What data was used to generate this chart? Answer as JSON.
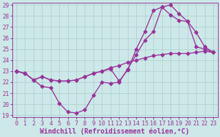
{
  "xlabel": "Windchill (Refroidissement éolien,°C)",
  "background_color": "#cce8e8",
  "line_color": "#993399",
  "grid_color": "#aacccc",
  "ylim": [
    19,
    29
  ],
  "xlim": [
    0,
    23
  ],
  "yticks": [
    19,
    20,
    21,
    22,
    23,
    24,
    25,
    26,
    27,
    28,
    29
  ],
  "xticks": [
    0,
    1,
    2,
    3,
    4,
    5,
    6,
    7,
    8,
    9,
    10,
    11,
    12,
    13,
    14,
    15,
    16,
    17,
    18,
    19,
    20,
    21,
    22,
    23
  ],
  "line1_x": [
    0,
    1,
    2,
    3,
    4,
    5,
    6,
    7,
    8,
    9,
    10,
    11,
    12,
    13,
    14,
    15,
    16,
    17,
    18,
    19,
    20,
    21,
    22,
    23
  ],
  "line1_y": [
    23.0,
    22.8,
    22.2,
    21.6,
    21.5,
    20.1,
    19.3,
    19.2,
    19.5,
    20.8,
    22.0,
    21.9,
    22.0,
    23.2,
    24.5,
    25.8,
    26.6,
    28.8,
    29.0,
    28.2,
    27.5,
    25.2,
    25.0,
    24.7
  ],
  "line2_x": [
    0,
    1,
    2,
    3,
    4,
    5,
    6,
    7,
    8,
    9,
    10,
    11,
    12,
    13,
    14,
    15,
    16,
    17,
    18,
    19,
    20,
    21,
    22,
    23
  ],
  "line2_y": [
    23.0,
    22.8,
    22.2,
    22.5,
    22.2,
    22.1,
    22.1,
    22.2,
    22.5,
    22.8,
    23.0,
    23.3,
    23.5,
    23.8,
    24.0,
    24.2,
    24.4,
    24.5,
    24.6,
    24.6,
    24.6,
    24.7,
    24.8,
    24.7
  ],
  "line3_x": [
    0,
    1,
    2,
    3,
    4,
    5,
    6,
    7,
    8,
    9,
    10,
    11,
    12,
    13,
    14,
    15,
    16,
    17,
    18,
    19,
    20,
    21,
    22,
    23
  ],
  "line3_y": [
    23.0,
    22.8,
    22.2,
    22.5,
    22.2,
    22.1,
    22.1,
    22.2,
    22.5,
    22.8,
    23.0,
    23.2,
    22.1,
    23.1,
    25.0,
    26.6,
    28.5,
    28.8,
    28.1,
    27.6,
    27.5,
    26.5,
    25.2,
    24.7
  ],
  "marker": "D",
  "markersize": 2.5,
  "linewidth": 1.0,
  "xlabel_fontsize": 7,
  "tick_fontsize": 6
}
